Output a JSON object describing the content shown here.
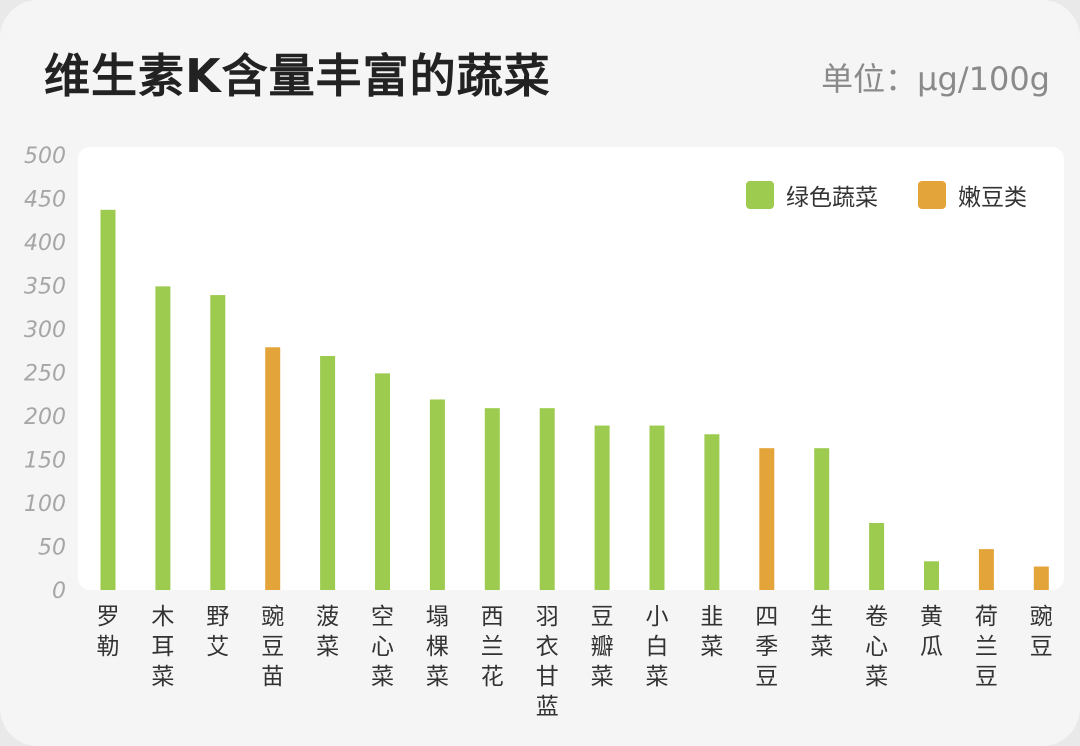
{
  "title": "维生素K含量丰富的蔬菜",
  "unit_label": "单位：μg/100g",
  "colors": {
    "green": "#9dcb4f",
    "orange": "#e3a43a"
  },
  "legend": [
    {
      "label": "绿色蔬菜",
      "color": "#9dcb4f"
    },
    {
      "label": "嫩豆类",
      "color": "#e3a43a"
    }
  ],
  "chart_data": {
    "type": "bar",
    "title": "维生素K含量丰富的蔬菜",
    "ylabel": "",
    "xlabel": "",
    "unit": "μg/100g",
    "ylim": [
      0,
      500
    ],
    "yticks": [
      0,
      50,
      100,
      150,
      200,
      250,
      300,
      350,
      400,
      450,
      500
    ],
    "legend_position": "top-right",
    "categories": [
      "罗勒",
      "木耳菜",
      "野艾",
      "豌豆苗",
      "菠菜",
      "空心菜",
      "塌棵菜",
      "西兰花",
      "羽衣甘蓝",
      "豆瓣菜",
      "小白菜",
      "韭菜",
      "四季豆",
      "生菜",
      "卷心菜",
      "黄瓜",
      "荷兰豆",
      "豌豆"
    ],
    "values": [
      437,
      349,
      339,
      279,
      269,
      249,
      219,
      209,
      209,
      189,
      189,
      179,
      163,
      163,
      77,
      33,
      47,
      27
    ],
    "groups": [
      "绿色蔬菜",
      "绿色蔬菜",
      "绿色蔬菜",
      "嫩豆类",
      "绿色蔬菜",
      "绿色蔬菜",
      "绿色蔬菜",
      "绿色蔬菜",
      "绿色蔬菜",
      "绿色蔬菜",
      "绿色蔬菜",
      "绿色蔬菜",
      "嫩豆类",
      "绿色蔬菜",
      "绿色蔬菜",
      "绿色蔬菜",
      "嫩豆类",
      "嫩豆类"
    ]
  }
}
